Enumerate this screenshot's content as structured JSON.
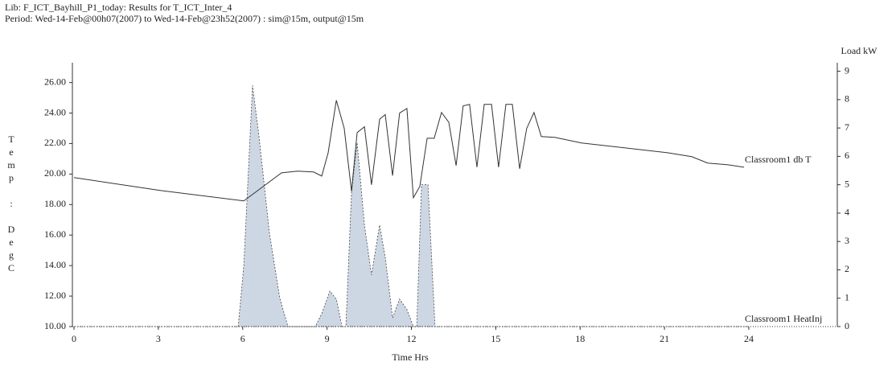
{
  "header": {
    "line1": "Lib: F_ICT_Bayhill_P1_today: Results for T_ICT_Inter_4",
    "line2": "Period: Wed-14-Feb@00h07(2007) to Wed-14-Feb@23h52(2007) : sim@15m, output@15m"
  },
  "chart_data": {
    "type": "line_area",
    "x_label": "Time Hrs",
    "y_label": "Temp : DegC",
    "y2_label": "Load kW",
    "xlim": [
      0,
      24
    ],
    "xticks": [
      0,
      3,
      6,
      9,
      12,
      15,
      18,
      21,
      24
    ],
    "ylim": [
      10,
      27.3
    ],
    "yticks": [
      {
        "value": 10,
        "label": "10.00"
      },
      {
        "value": 12,
        "label": "12.00"
      },
      {
        "value": 14,
        "label": "14.00"
      },
      {
        "value": 16,
        "label": "16.00"
      },
      {
        "value": 18,
        "label": "18.00"
      },
      {
        "value": 20,
        "label": "20.00"
      },
      {
        "value": 22,
        "label": "22.00"
      },
      {
        "value": 24,
        "label": "24.00"
      },
      {
        "value": 26,
        "label": "26.00"
      }
    ],
    "y2lim": [
      0,
      9.3
    ],
    "y2ticks": [
      0,
      1,
      2,
      3,
      4,
      5,
      6,
      7,
      8,
      9
    ],
    "series": [
      {
        "name": "Classroom1 db T",
        "color": "#333333",
        "style": "line",
        "x": [
          0,
          3.09,
          6.04,
          7.38,
          7.95,
          8.52,
          8.81,
          9.04,
          9.33,
          9.61,
          9.87,
          10.07,
          10.33,
          10.58,
          10.87,
          11.07,
          11.33,
          11.58,
          11.84,
          12.07,
          12.3,
          12.56,
          12.81,
          13.07,
          13.33,
          13.59,
          13.84,
          14.07,
          14.33,
          14.59,
          14.85,
          15.1,
          15.36,
          15.59,
          15.85,
          16.1,
          16.36,
          16.62,
          17.1,
          18.05,
          21.11,
          21.97,
          22.54,
          23.26,
          23.83
        ],
        "values": [
          19.77,
          18.92,
          18.24,
          20.08,
          20.19,
          20.14,
          19.87,
          21.4,
          24.84,
          23.0,
          18.87,
          22.72,
          23.1,
          19.3,
          23.6,
          23.9,
          19.9,
          24.0,
          24.3,
          18.45,
          19.19,
          22.35,
          22.35,
          24.04,
          23.4,
          20.56,
          24.47,
          24.57,
          20.45,
          24.57,
          24.57,
          20.45,
          24.57,
          24.57,
          20.35,
          22.99,
          24.04,
          22.46,
          22.41,
          22.04,
          21.4,
          21.14,
          20.72,
          20.61,
          20.45
        ]
      },
      {
        "name": "Classroom1 HeatInj",
        "color": "#cdd7e3",
        "style": "area",
        "axis": "y2",
        "x": [
          0,
          5.84,
          6.04,
          6.35,
          6.58,
          6.95,
          7.32,
          7.61,
          8.58,
          8.81,
          9.1,
          9.33,
          9.53,
          9.67,
          9.87,
          10.07,
          10.33,
          10.58,
          10.87,
          11.07,
          11.33,
          11.58,
          11.84,
          12.07,
          12.19,
          12.36,
          12.59,
          12.84,
          24
        ],
        "values": [
          0,
          0,
          2.16,
          8.5,
          6.7,
          3.3,
          1.0,
          0,
          0,
          0.45,
          1.25,
          0.97,
          0,
          0,
          4.72,
          6.48,
          3.58,
          1.82,
          3.58,
          2.44,
          0.31,
          0.97,
          0.6,
          0,
          0,
          5.0,
          5.0,
          0,
          0
        ]
      }
    ]
  }
}
